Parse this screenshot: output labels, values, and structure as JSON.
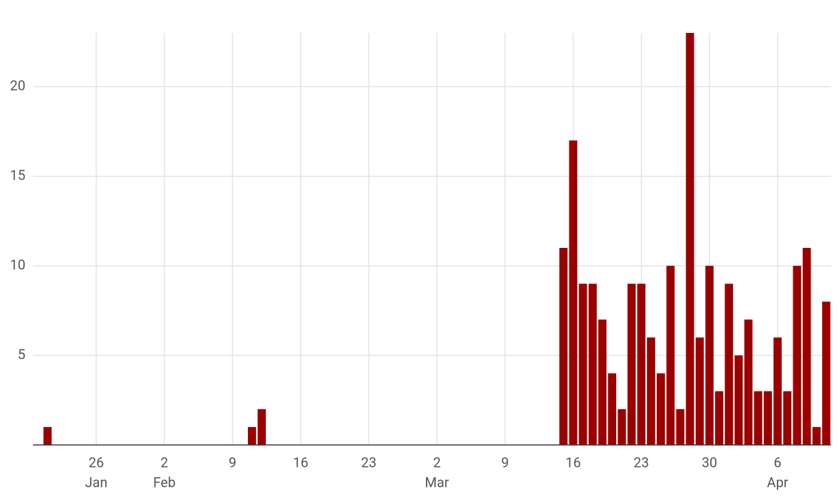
{
  "chart_data": {
    "type": "bar",
    "x": [
      "Jan 21",
      "Feb 11",
      "Feb 12",
      "Mar 15",
      "Mar 16",
      "Mar 17",
      "Mar 18",
      "Mar 19",
      "Mar 20",
      "Mar 21",
      "Mar 22",
      "Mar 23",
      "Mar 24",
      "Mar 25",
      "Mar 26",
      "Mar 27",
      "Mar 28",
      "Mar 29",
      "Mar 30",
      "Mar 31",
      "Apr 1",
      "Apr 2",
      "Apr 3",
      "Apr 4",
      "Apr 5",
      "Apr 6",
      "Apr 7",
      "Apr 8",
      "Apr 9",
      "Apr 10",
      "Apr 11"
    ],
    "values": [
      1,
      1,
      2,
      11,
      17,
      9,
      9,
      7,
      4,
      2,
      9,
      9,
      6,
      4,
      10,
      2,
      23,
      6,
      10,
      3,
      9,
      5,
      7,
      3,
      3,
      6,
      3,
      10,
      11,
      1,
      8
    ],
    "color": "#9b0000",
    "xlim": [
      "Jan 20",
      "Apr 11"
    ],
    "xticks": [
      {
        "value": "Jan 26",
        "label": "26"
      },
      {
        "value": "Feb 2",
        "label": "2"
      },
      {
        "value": "Feb 9",
        "label": "9"
      },
      {
        "value": "Feb 16",
        "label": "16"
      },
      {
        "value": "Feb 23",
        "label": "23"
      },
      {
        "value": "Mar 2",
        "label": "2"
      },
      {
        "value": "Mar 9",
        "label": "9"
      },
      {
        "value": "Mar 16",
        "label": "16"
      },
      {
        "value": "Mar 23",
        "label": "23"
      },
      {
        "value": "Mar 30",
        "label": "30"
      },
      {
        "value": "Apr 6",
        "label": "6"
      }
    ],
    "month_labels": [
      {
        "value": "Jan 26",
        "label": "Jan"
      },
      {
        "value": "Feb 2",
        "label": "Feb"
      },
      {
        "value": "Mar 2",
        "label": "Mar"
      },
      {
        "value": "Apr 6",
        "label": "Apr"
      }
    ],
    "ylim": [
      0,
      23
    ],
    "yticks": [
      5,
      10,
      15,
      20
    ],
    "grid": true
  }
}
